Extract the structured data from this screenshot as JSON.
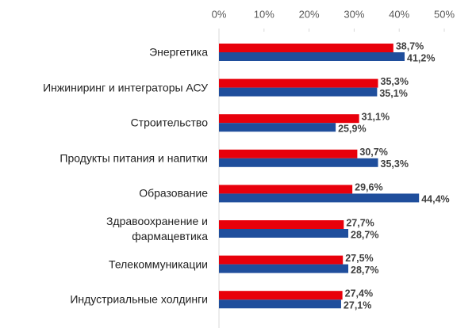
{
  "chart_data": {
    "type": "bar",
    "orientation": "horizontal",
    "categories": [
      "Энергетика",
      "Инжиниринг и интеграторы АСУ",
      "Строительство",
      "Продукты питания и напитки",
      "Образование",
      "Здравоохранение и фармацевтика",
      "Телекоммуникации",
      "Индустриальные холдинги"
    ],
    "series": [
      {
        "color": "#e8000b",
        "values": [
          38.7,
          35.3,
          31.1,
          30.7,
          29.6,
          27.7,
          27.5,
          27.4
        ],
        "value_labels": [
          "38,7%",
          "35,3%",
          "31,1%",
          "30,7%",
          "29,6%",
          "27,7%",
          "27,5%",
          "27,4%"
        ]
      },
      {
        "color": "#1f4e9c",
        "values": [
          41.2,
          35.1,
          25.9,
          35.3,
          44.4,
          28.7,
          28.7,
          27.1
        ],
        "value_labels": [
          "41,2%",
          "35,1%",
          "25,9%",
          "35,3%",
          "44,4%",
          "28,7%",
          "28,7%",
          "27,1%"
        ]
      }
    ],
    "xlim": [
      0,
      50
    ],
    "xticks": [
      {
        "value": 0,
        "label": "0%"
      },
      {
        "value": 10,
        "label": "10%"
      },
      {
        "value": 20,
        "label": "20%"
      },
      {
        "value": 30,
        "label": "30%"
      },
      {
        "value": 40,
        "label": "40%"
      },
      {
        "value": 50,
        "label": "50%"
      }
    ],
    "axis_position": "top",
    "grid": false
  }
}
